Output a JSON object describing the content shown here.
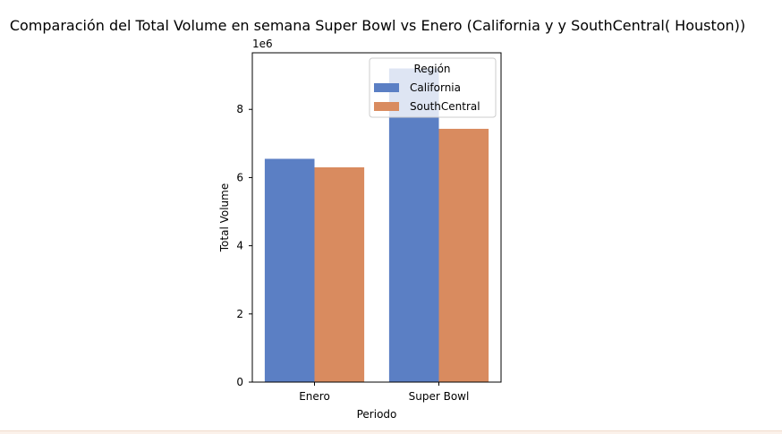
{
  "chart_data": {
    "type": "bar",
    "title": "Comparación del Total Volume en semana Super Bowl vs Enero (California y y SouthCentral( Houston))",
    "xlabel": "Periodo",
    "ylabel": "Total Volume",
    "offset_text": "1e6",
    "categories": [
      "Enero",
      "Super Bowl"
    ],
    "series": [
      {
        "name": "California",
        "values": [
          6550000,
          9200000
        ],
        "color": "#5b7fc4"
      },
      {
        "name": "SouthCentral",
        "values": [
          6300000,
          7430000
        ],
        "color": "#d98b5f"
      }
    ],
    "ylim": [
      0,
      9660000
    ],
    "yticks": [
      0,
      2000000,
      4000000,
      6000000,
      8000000
    ],
    "ytick_labels": [
      "0",
      "2",
      "4",
      "6",
      "8"
    ],
    "legend": {
      "title": "Región",
      "placement": "upper right"
    },
    "grid": false
  }
}
